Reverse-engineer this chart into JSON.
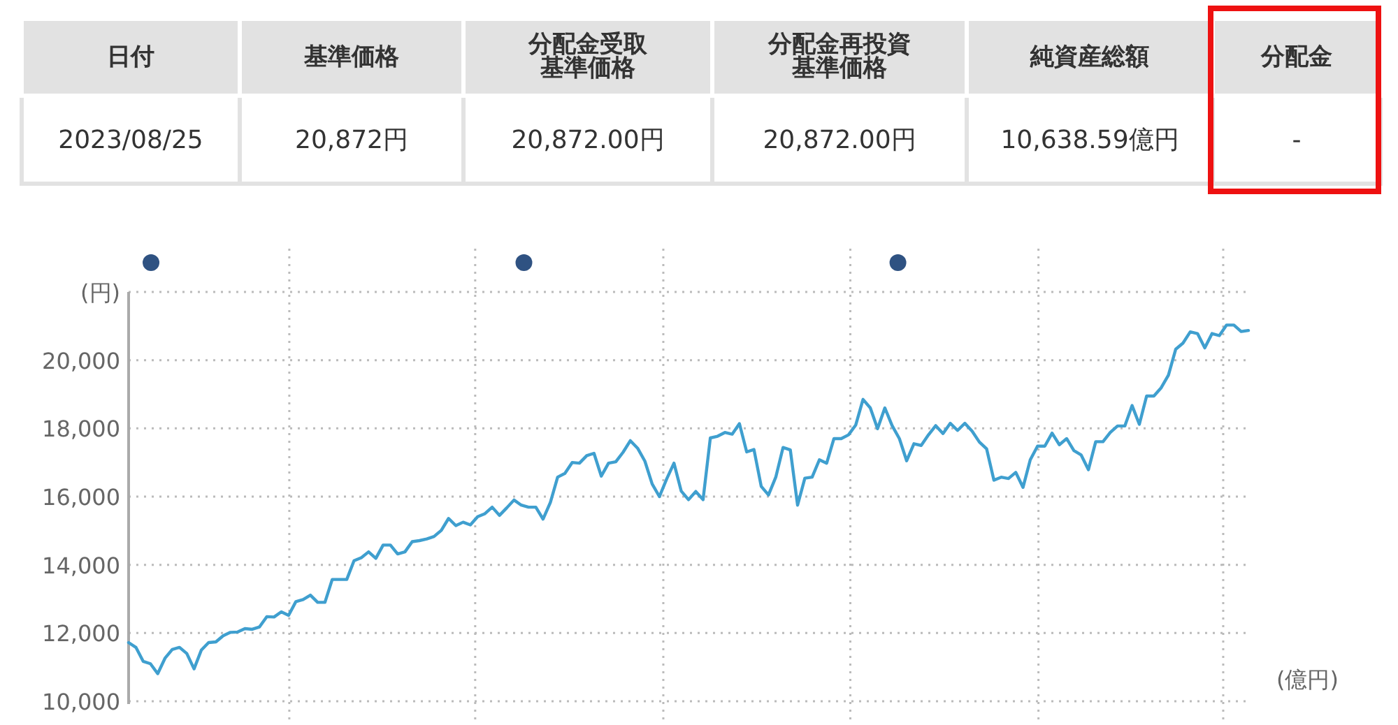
{
  "chart_data": [
    {
      "type": "other",
      "annotations": [
        "日付",
        "基準価格",
        "分配金受取基準価格",
        "分配金再投資基準価格",
        "純資産総額",
        "分配金",
        "2023/08/25",
        "20,872円",
        "20,872.00円",
        "20,872.00円",
        "10,638.59億円",
        "-"
      ]
    },
    {
      "type": "line",
      "color": "#3f9fcf",
      "grid": true,
      "ylabel": "(円)",
      "y2label": "(億円)",
      "ylim": [
        10000,
        22000
      ],
      "yticks": [
        {
          "value": 10000,
          "label": "10,000"
        },
        {
          "value": 12000,
          "label": "12,000"
        },
        {
          "value": 14000,
          "label": "14,000"
        },
        {
          "value": 16000,
          "label": "16,000"
        },
        {
          "value": 18000,
          "label": "18,000"
        },
        {
          "value": 20000,
          "label": "20,000"
        },
        {
          "value": 22000,
          "label": null
        }
      ],
      "categories": [
        null,
        null,
        null,
        null,
        null,
        null,
        null,
        null,
        null,
        null,
        null,
        null,
        null,
        null,
        null,
        null,
        null,
        null,
        null,
        null,
        null,
        null,
        null,
        null,
        null,
        null,
        null,
        null,
        null,
        null,
        null,
        null,
        null,
        null,
        null,
        null,
        null,
        null,
        null,
        null,
        null,
        null,
        null,
        null,
        null,
        null,
        null,
        null,
        null,
        null,
        null,
        null,
        null,
        null,
        null,
        null,
        null,
        null,
        null,
        null,
        null,
        null,
        null,
        null,
        null,
        null,
        null,
        null,
        null,
        null,
        null,
        null,
        null,
        null,
        null,
        null,
        null,
        null,
        null,
        null,
        null,
        null,
        null,
        null,
        null,
        null,
        null,
        null,
        null,
        null,
        null,
        null,
        null,
        null,
        null,
        null,
        null,
        null,
        null,
        null,
        null,
        null,
        null,
        null,
        null,
        null,
        null,
        null,
        null,
        null,
        null,
        null,
        null,
        null,
        null,
        null,
        null,
        null,
        null,
        null,
        null,
        null,
        null,
        null,
        null,
        null,
        null,
        null,
        null,
        null,
        null,
        null,
        null,
        null,
        null,
        null,
        null,
        null,
        null,
        null,
        null,
        null,
        null,
        null,
        null,
        null,
        null,
        null,
        null,
        null,
        null,
        null,
        null,
        null,
        null
      ],
      "values": [
        11720,
        11580,
        11170,
        11100,
        10810,
        11260,
        11520,
        11580,
        11400,
        10950,
        11500,
        11720,
        11740,
        11920,
        12020,
        12030,
        12130,
        12110,
        12180,
        12480,
        12470,
        12620,
        12520,
        12920,
        12980,
        13110,
        12900,
        12900,
        13570,
        13570,
        13570,
        14120,
        14210,
        14380,
        14190,
        14580,
        14580,
        14320,
        14380,
        14680,
        14710,
        14760,
        14830,
        15010,
        15360,
        15150,
        15250,
        15170,
        15410,
        15500,
        15690,
        15450,
        15670,
        15900,
        15750,
        15690,
        15690,
        15340,
        15830,
        16570,
        16680,
        17000,
        16980,
        17200,
        17270,
        16600,
        16980,
        17020,
        17300,
        17640,
        17420,
        17040,
        16370,
        16000,
        16520,
        16980,
        16160,
        15910,
        16150,
        15910,
        17720,
        17770,
        17880,
        17830,
        18140,
        17310,
        17380,
        16300,
        16050,
        16570,
        17440,
        17370,
        15750,
        16540,
        16570,
        17080,
        16980,
        17700,
        17700,
        17810,
        18100,
        18850,
        18600,
        17990,
        18600,
        18080,
        17700,
        17050,
        17550,
        17500,
        17810,
        18080,
        17850,
        18150,
        17940,
        18150,
        17920,
        17600,
        17400,
        16480,
        16570,
        16530,
        16710,
        16270,
        17080,
        17480,
        17480,
        17860,
        17520,
        17700,
        17350,
        17220,
        16790,
        17610,
        17610,
        17880,
        18070,
        18070,
        18670,
        18120,
        18950,
        18950,
        19190,
        19560,
        20320,
        20500,
        20830,
        20780,
        20360,
        20780,
        20720,
        21030,
        21030,
        20840,
        20870
      ]
    }
  ]
}
